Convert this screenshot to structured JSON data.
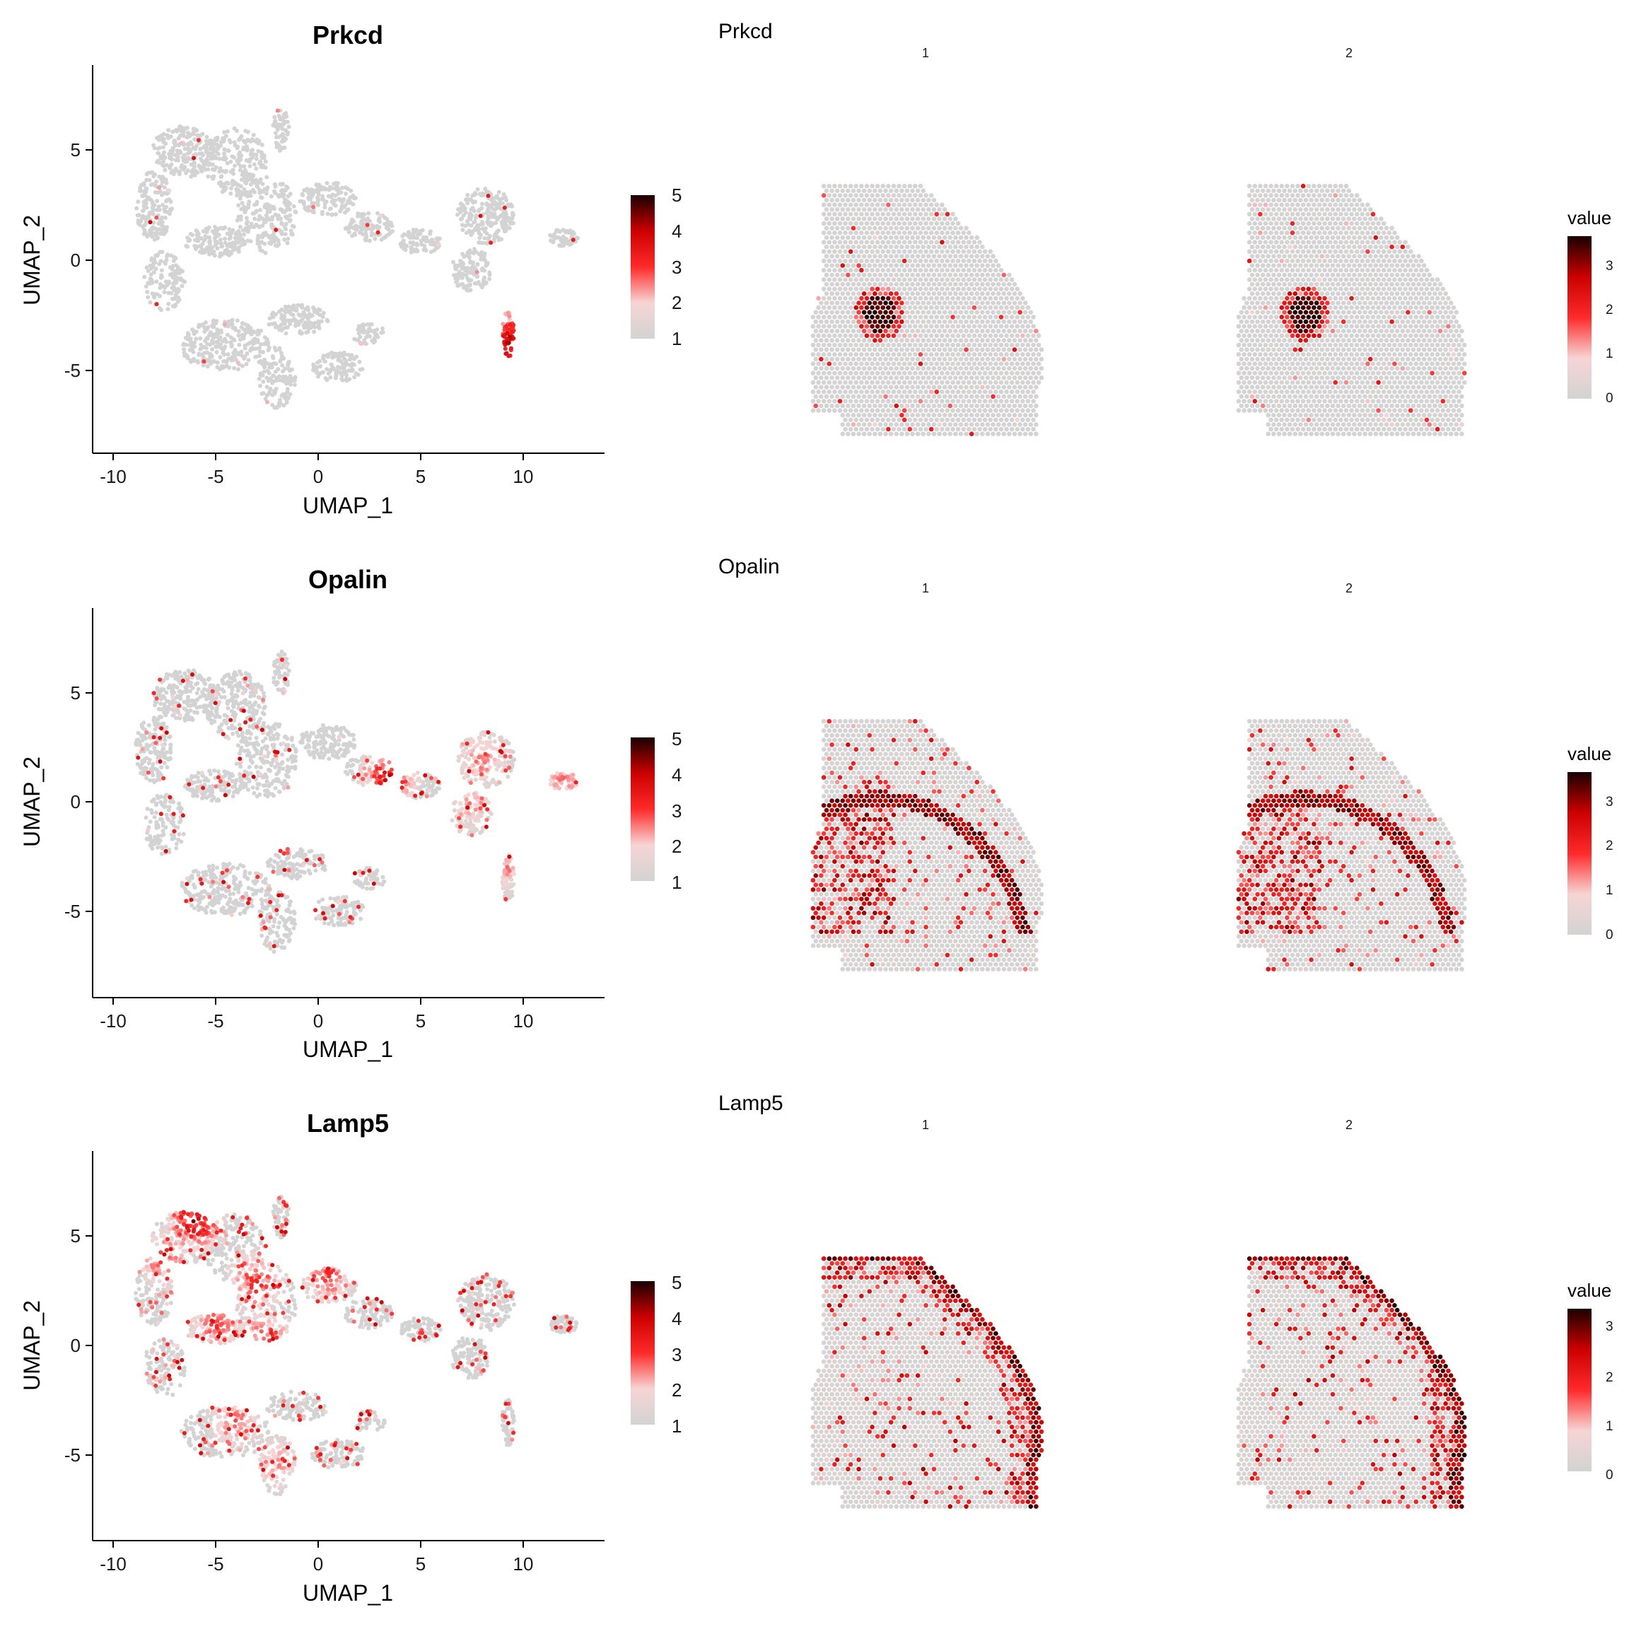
{
  "colors": {
    "low": "#d3d3d3",
    "mid_low": "#f7d4d4",
    "mid": "#ff2a2a",
    "high": "#cc0000",
    "max": "#1a0000",
    "axis": "#000000"
  },
  "chart_data": [
    {
      "type": "scatter",
      "title": "Prkcd",
      "xlabel": "UMAP_1",
      "ylabel": "UMAP_2",
      "xlim": [
        -11,
        14
      ],
      "ylim": [
        -9,
        9
      ],
      "xticks": [
        "-10",
        "-5",
        "0",
        "5",
        "10"
      ],
      "yticks": [
        "-5",
        "0",
        "5"
      ],
      "legend_ticks": [
        "1",
        "2",
        "3",
        "4",
        "5"
      ],
      "legend_range": [
        0.7,
        5.1
      ],
      "expression_hotspots": [
        {
          "x": 9.3,
          "y": -3.8,
          "level": 4.6
        },
        {
          "x": 9.0,
          "y": -4.5,
          "level": 4.8
        },
        {
          "x": 9.5,
          "y": -3.0,
          "level": 3.5
        }
      ],
      "background_level": 0.1,
      "sparse_rate": 0.01
    },
    {
      "type": "heatmap",
      "title": "Prkcd",
      "facets": [
        "1",
        "2"
      ],
      "legend_title": "value",
      "legend_ticks": [
        "0",
        "1",
        "2",
        "3"
      ],
      "legend_range": [
        0,
        3.7
      ],
      "pattern": "blob",
      "blob_center": [
        0.28,
        0.52
      ],
      "blob_radius": 0.07,
      "background_level": 0.1,
      "sparse_rate": 0.03
    },
    {
      "type": "scatter",
      "title": "Opalin",
      "xlabel": "UMAP_1",
      "ylabel": "UMAP_2",
      "xlim": [
        -11,
        14
      ],
      "ylim": [
        -9,
        9
      ],
      "xticks": [
        "-10",
        "-5",
        "0",
        "5",
        "10"
      ],
      "yticks": [
        "-5",
        "0",
        "5"
      ],
      "legend_ticks": [
        "1",
        "2",
        "3",
        "4",
        "5"
      ],
      "legend_range": [
        0.7,
        5.1
      ],
      "expression_hotspots": [
        {
          "x": 3.5,
          "y": 1.2,
          "level": 4.5
        },
        {
          "x": 8.0,
          "y": 2.0,
          "level": 3.0
        },
        {
          "x": 7.5,
          "y": 0.0,
          "level": 2.8
        },
        {
          "x": 12.0,
          "y": 1.0,
          "level": 2.8
        },
        {
          "x": 9.3,
          "y": -3.0,
          "level": 2.7
        }
      ],
      "background_level": 0.15,
      "sparse_rate": 0.08
    },
    {
      "type": "heatmap",
      "title": "Opalin",
      "facets": [
        "1",
        "2"
      ],
      "legend_title": "value",
      "legend_ticks": [
        "0",
        "1",
        "2",
        "3"
      ],
      "legend_range": [
        0,
        3.7
      ],
      "pattern": "arc",
      "background_level": 0.2,
      "sparse_rate": 0.1
    },
    {
      "type": "scatter",
      "title": "Lamp5",
      "xlabel": "UMAP_1",
      "ylabel": "UMAP_2",
      "xlim": [
        -11,
        14
      ],
      "ylim": [
        -9,
        9
      ],
      "xticks": [
        "-10",
        "-5",
        "0",
        "5",
        "10"
      ],
      "yticks": [
        "-5",
        "0",
        "5"
      ],
      "legend_ticks": [
        "1",
        "2",
        "3",
        "4",
        "5"
      ],
      "legend_range": [
        0.7,
        5.1
      ],
      "expression_hotspots": [
        {
          "x": -6.0,
          "y": 5.8,
          "level": 4.8
        },
        {
          "x": -7.5,
          "y": 4.0,
          "level": 3.5
        },
        {
          "x": -3.0,
          "y": 3.0,
          "level": 3.8
        },
        {
          "x": -2.5,
          "y": 0.2,
          "level": 4.0
        },
        {
          "x": -5.0,
          "y": 1.0,
          "level": 3.5
        },
        {
          "x": 0.5,
          "y": 3.2,
          "level": 3.5
        },
        {
          "x": -4.0,
          "y": -3.5,
          "level": 3.0
        },
        {
          "x": -2.0,
          "y": -5.5,
          "level": 2.8
        }
      ],
      "background_level": 0.5,
      "sparse_rate": 0.15
    },
    {
      "type": "heatmap",
      "title": "Lamp5",
      "facets": [
        "1",
        "2"
      ],
      "legend_title": "value",
      "legend_ticks": [
        "0",
        "1",
        "2",
        "3"
      ],
      "legend_range": [
        0,
        3.3
      ],
      "pattern": "cortex",
      "background_level": 0.3,
      "sparse_rate": 0.12
    }
  ]
}
